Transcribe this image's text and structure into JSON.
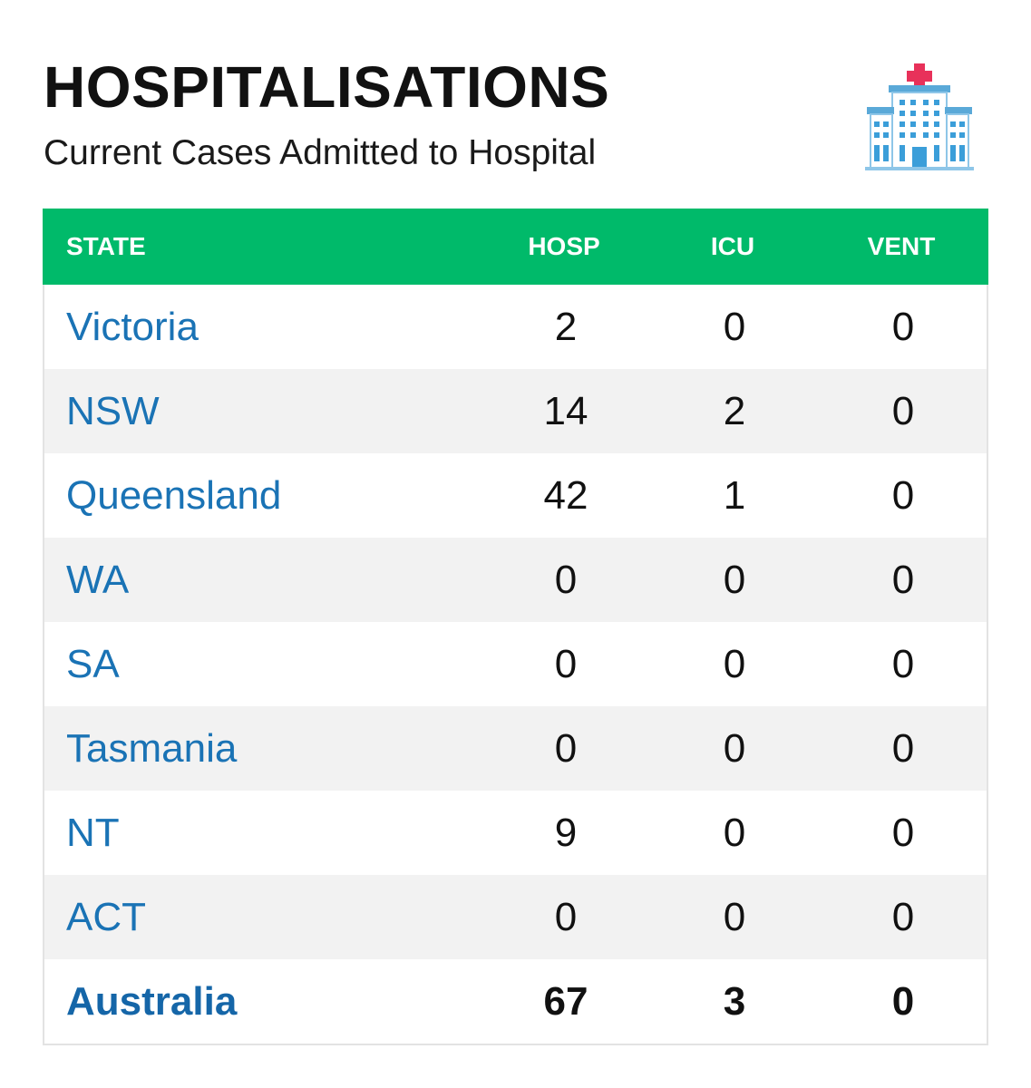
{
  "header": {
    "title": "HOSPITALISATIONS",
    "subtitle": "Current Cases Admitted to Hospital",
    "icon": "hospital-building-icon"
  },
  "colors": {
    "header_bg": "#00ba6a",
    "state_link": "#1a73b5",
    "alt_row": "#f2f2f2"
  },
  "table": {
    "columns": [
      "STATE",
      "HOSP",
      "ICU",
      "VENT"
    ],
    "rows": [
      {
        "state": "Victoria",
        "hosp": "2",
        "icu": "0",
        "vent": "0"
      },
      {
        "state": "NSW",
        "hosp": "14",
        "icu": "2",
        "vent": "0"
      },
      {
        "state": "Queensland",
        "hosp": "42",
        "icu": "1",
        "vent": "0"
      },
      {
        "state": "WA",
        "hosp": "0",
        "icu": "0",
        "vent": "0"
      },
      {
        "state": "SA",
        "hosp": "0",
        "icu": "0",
        "vent": "0"
      },
      {
        "state": "Tasmania",
        "hosp": "0",
        "icu": "0",
        "vent": "0"
      },
      {
        "state": "NT",
        "hosp": "9",
        "icu": "0",
        "vent": "0"
      },
      {
        "state": "ACT",
        "hosp": "0",
        "icu": "0",
        "vent": "0"
      }
    ],
    "total": {
      "state": "Australia",
      "hosp": "67",
      "icu": "3",
      "vent": "0"
    }
  }
}
